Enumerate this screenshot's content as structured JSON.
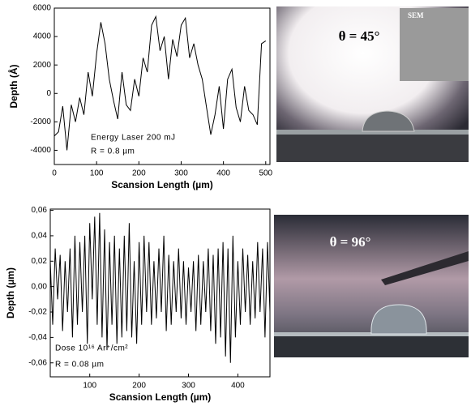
{
  "chart_data": [
    {
      "type": "line",
      "xlabel": "Scansion Length (µm)",
      "ylabel": "Depth (Å)",
      "annotations": [
        "Energy Laser 200 mJ",
        "R = 0.8 µm"
      ],
      "x": [
        0,
        10,
        20,
        30,
        40,
        50,
        60,
        70,
        80,
        90,
        100,
        110,
        120,
        130,
        140,
        150,
        160,
        170,
        180,
        190,
        200,
        210,
        220,
        230,
        240,
        250,
        260,
        270,
        280,
        290,
        300,
        310,
        320,
        330,
        340,
        350,
        360,
        370,
        380,
        390,
        400,
        410,
        420,
        430,
        440,
        450,
        460,
        470,
        480,
        490,
        500
      ],
      "values": [
        -3000,
        -2700,
        -900,
        -4000,
        -800,
        -2000,
        -300,
        -1500,
        1500,
        -200,
        2800,
        5000,
        3500,
        1000,
        -500,
        -1800,
        1500,
        -800,
        -1200,
        1000,
        -200,
        2500,
        1500,
        4800,
        5400,
        3000,
        4000,
        1000,
        3800,
        2600,
        4800,
        5300,
        2500,
        3500,
        2000,
        1000,
        -1000,
        -2900,
        -1500,
        500,
        -2500,
        1000,
        1700,
        -1000,
        -2000,
        500,
        -1200,
        -1500,
        -2200,
        3500,
        3700
      ],
      "color": "#000000",
      "xlim": [
        0,
        510
      ],
      "ylim": [
        -5000,
        6000
      ],
      "xticks": [
        0,
        100,
        200,
        300,
        400,
        500
      ],
      "yticks": [
        -4000,
        -2000,
        0,
        2000,
        4000,
        6000
      ]
    },
    {
      "type": "line",
      "xlabel": "Scansion Length (µm)",
      "ylabel": "Depth (µm)",
      "annotations": [
        "Dose 10¹⁶ Ar⁺/cm²",
        "R = 0.08 µm"
      ],
      "x": [
        20,
        25,
        30,
        35,
        40,
        45,
        50,
        55,
        60,
        65,
        70,
        75,
        80,
        85,
        90,
        95,
        100,
        105,
        110,
        115,
        120,
        125,
        130,
        135,
        140,
        145,
        150,
        155,
        160,
        165,
        170,
        175,
        180,
        185,
        190,
        195,
        200,
        205,
        210,
        215,
        220,
        225,
        230,
        235,
        240,
        245,
        250,
        255,
        260,
        265,
        270,
        275,
        280,
        285,
        290,
        295,
        300,
        305,
        310,
        315,
        320,
        325,
        330,
        335,
        340,
        345,
        350,
        355,
        360,
        365,
        370,
        375,
        380,
        385,
        390,
        395,
        400,
        405,
        410,
        415,
        420,
        425,
        430,
        435,
        440,
        445,
        450,
        455,
        460,
        465
      ],
      "values": [
        0.02,
        -0.03,
        0.03,
        -0.01,
        0.025,
        -0.035,
        0.02,
        -0.02,
        0.03,
        -0.04,
        0.04,
        -0.03,
        0.035,
        -0.02,
        0.04,
        -0.045,
        0.05,
        -0.01,
        0.055,
        -0.03,
        0.058,
        -0.04,
        0.045,
        -0.05,
        0.035,
        -0.03,
        0.04,
        -0.045,
        0.03,
        -0.04,
        0.04,
        -0.035,
        0.05,
        -0.04,
        0.02,
        -0.045,
        0.035,
        -0.03,
        0.04,
        -0.02,
        0.035,
        -0.03,
        0.02,
        -0.025,
        0.03,
        -0.02,
        0.04,
        -0.035,
        0.025,
        -0.03,
        0.02,
        -0.02,
        0.03,
        -0.025,
        0.02,
        -0.03,
        0.015,
        -0.02,
        0.02,
        -0.035,
        0.025,
        -0.03,
        0.02,
        -0.02,
        0.03,
        -0.035,
        0.025,
        -0.045,
        0.03,
        -0.04,
        0.035,
        -0.055,
        0.03,
        -0.06,
        0.04,
        -0.04,
        0.02,
        -0.03,
        0.03,
        -0.02,
        0.025,
        -0.03,
        0.02,
        -0.025,
        0.035,
        -0.02,
        0.03,
        -0.04,
        0.035,
        -0.02
      ],
      "color": "#000000",
      "xlim": [
        20,
        465
      ],
      "ylim": [
        -0.071,
        0.061
      ],
      "xticks": [
        100,
        200,
        300,
        400
      ],
      "yticks": [
        {
          "value": -0.06,
          "label": "-0,06"
        },
        {
          "value": -0.04,
          "label": "-0,04"
        },
        {
          "value": -0.02,
          "label": "-0,02"
        },
        {
          "value": 0,
          "label": "0,00"
        },
        {
          "value": 0.02,
          "label": "0,02"
        },
        {
          "value": 0.04,
          "label": "0,04"
        },
        {
          "value": 0.06,
          "label": "0,06"
        }
      ]
    }
  ],
  "photos": [
    {
      "angle_label": "θ = 45°",
      "inset_label": "SEM"
    },
    {
      "angle_label": "θ = 96°"
    }
  ]
}
